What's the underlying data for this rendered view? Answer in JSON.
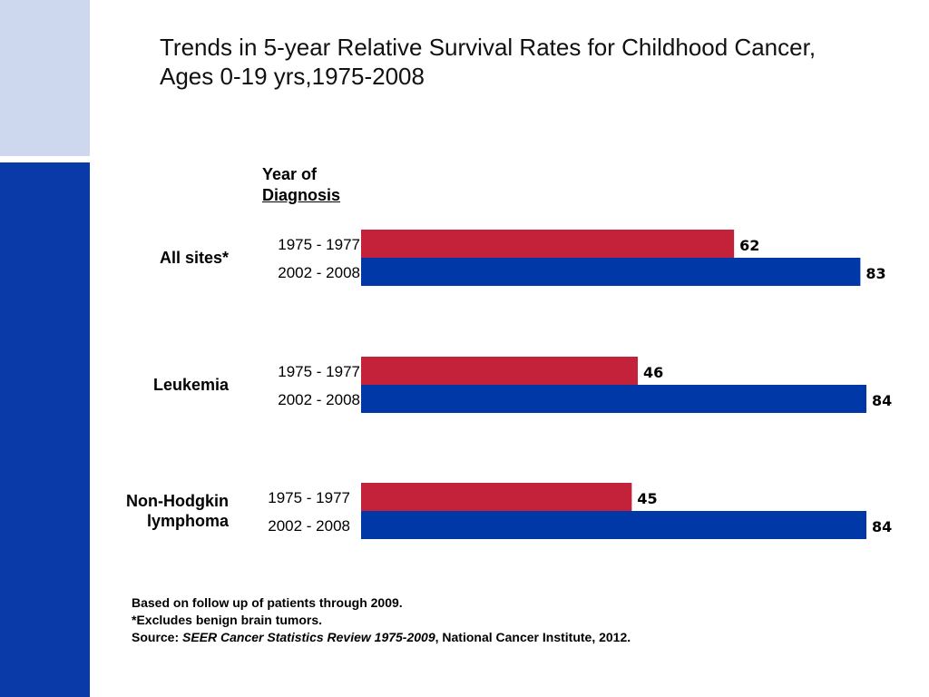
{
  "colors": {
    "series_1975": "#c4213a",
    "series_2002": "#0038a8",
    "band_light": "#cdd8ee",
    "band_dark": "#0a3aa8"
  },
  "title": {
    "line1": "Trends in 5-year Relative Survival Rates for Childhood Cancer,",
    "line2": "Ages 0-19 yrs,1975-2008"
  },
  "year_header": {
    "line1": "Year of",
    "line2": "Diagnosis"
  },
  "chart_data": {
    "type": "bar",
    "orientation": "horizontal",
    "title": "Trends in 5-year Relative Survival Rates for Childhood Cancer, Ages 0-19 yrs,1975-2008",
    "categories": [
      "All sites*",
      "Leukemia",
      "Non-Hodgkin lymphoma"
    ],
    "category_lines": [
      [
        "All sites*"
      ],
      [
        "Leukemia"
      ],
      [
        "Non-Hodgkin",
        "lymphoma"
      ]
    ],
    "series": [
      {
        "name": "1975 - 1977",
        "values": [
          62,
          46,
          45
        ],
        "color": "#c4213a"
      },
      {
        "name": "2002 - 2008",
        "values": [
          83,
          84,
          84
        ],
        "color": "#0038a8"
      }
    ],
    "xlim": [
      0,
      84
    ],
    "grid": false,
    "legend": "none"
  },
  "footnotes": {
    "line1": "Based on follow up of patients through 2009.",
    "line2": "*Excludes benign brain tumors.",
    "source_prefix": "Source: ",
    "source_title": "SEER Cancer Statistics Review 1975-2009",
    "source_suffix": ", National Cancer Institute, 2012."
  }
}
